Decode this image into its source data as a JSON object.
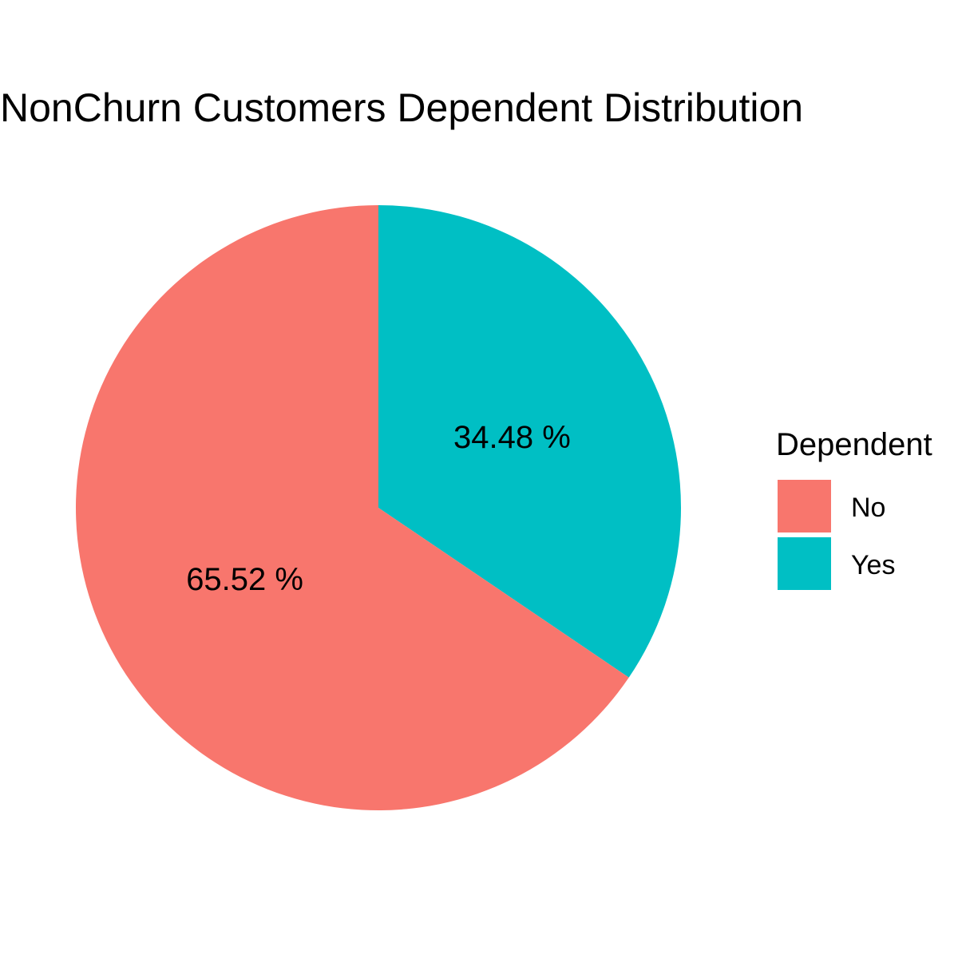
{
  "chart_data": {
    "type": "pie",
    "title": "NonChurn Customers Dependent Distribution",
    "legend": {
      "title": "Dependent",
      "placement": "right"
    },
    "slices": [
      {
        "label": "No",
        "value": 65.52,
        "value_label": "65.52 %",
        "color": "#F8766D"
      },
      {
        "label": "Yes",
        "value": 34.48,
        "value_label": "34.48 %",
        "color": "#00BFC4"
      }
    ],
    "start": "12 o'clock",
    "direction": "counterclockwise"
  }
}
